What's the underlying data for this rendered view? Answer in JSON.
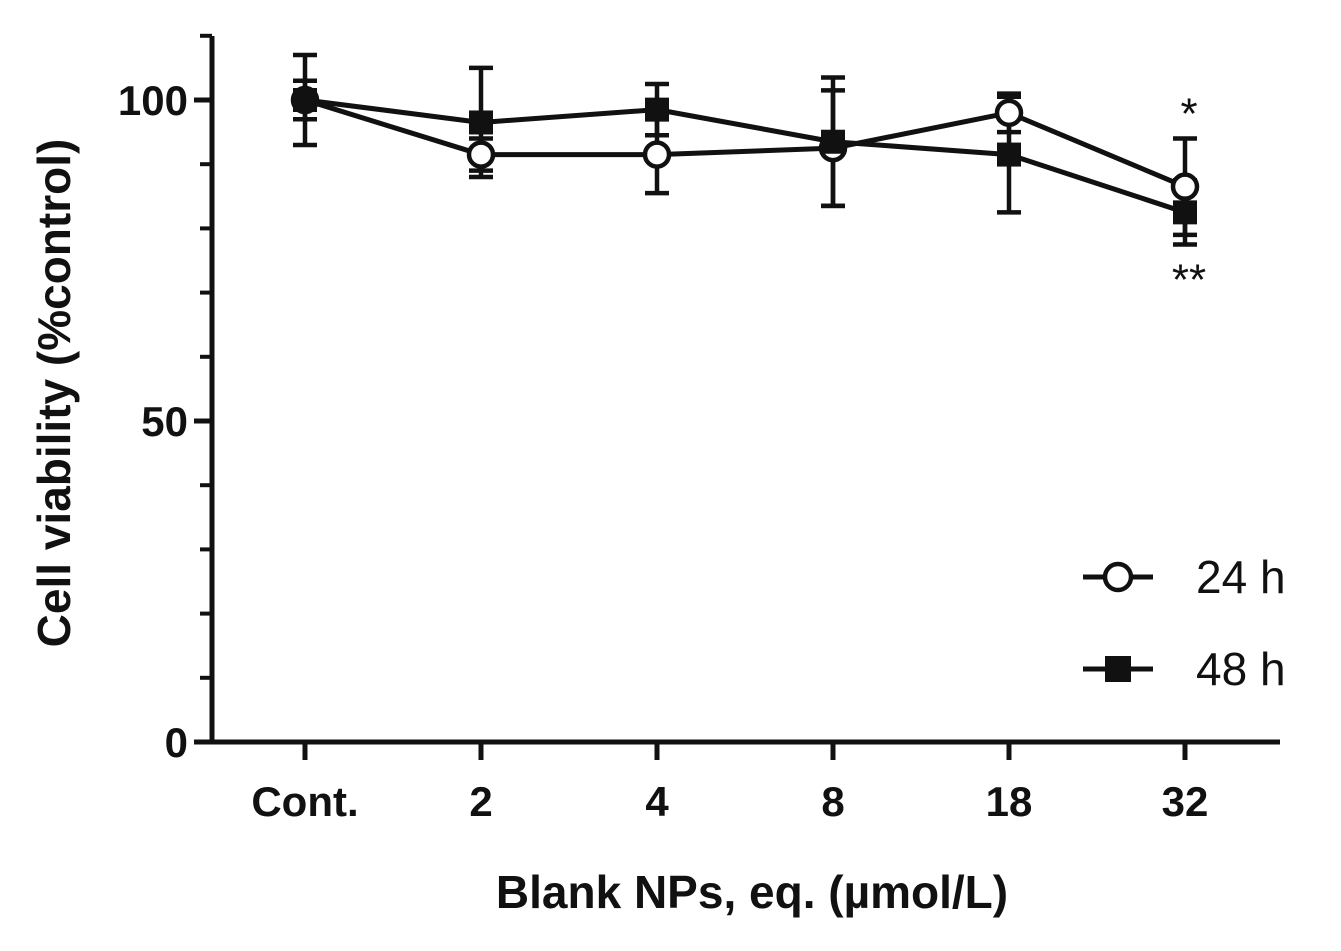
{
  "chart_data": {
    "type": "line",
    "xlabel": "Blank NPs, eq. (µmol/L)",
    "ylabel": "Cell viability (%control)",
    "categories": [
      "Cont.",
      "2",
      "4",
      "8",
      "18",
      "32"
    ],
    "ylim": [
      0,
      110
    ],
    "yticks": [
      0,
      50,
      100
    ],
    "legend_position": "bottom-right",
    "series": [
      {
        "name": "24 h",
        "marker": "open-circle",
        "values": [
          100,
          91.5,
          91.5,
          92.5,
          98,
          86.5
        ],
        "errors": [
          7,
          2.5,
          6,
          9,
          3,
          7.5
        ]
      },
      {
        "name": "48 h",
        "marker": "filled-square",
        "values": [
          100,
          96.5,
          98.5,
          93.5,
          91.5,
          82.5
        ],
        "errors": [
          3,
          8.5,
          4,
          10,
          9,
          5
        ]
      }
    ],
    "annotations": [
      {
        "category": "32",
        "series": "24 h",
        "text": "*",
        "placement": "above"
      },
      {
        "category": "32",
        "series": "48 h",
        "text": "**",
        "placement": "below"
      }
    ]
  }
}
